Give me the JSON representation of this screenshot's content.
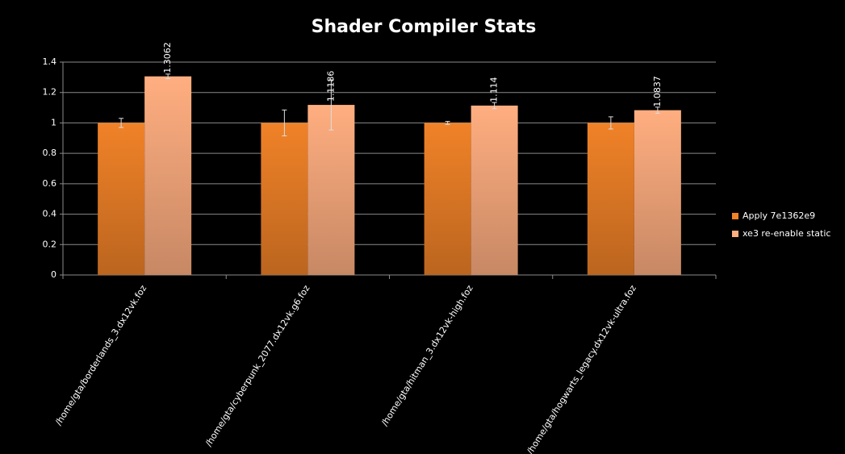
{
  "chart_data": {
    "type": "bar",
    "title": "Shader Compiler Stats",
    "categories": [
      "/home/gta/borderlands_3.dx12vk.foz",
      "/home/gta/cyberpunk_2077.dx12vk.g6.foz",
      "/home/gta/hitman_3.dx12vk-high.foz",
      "/home/gta/hogwarts_legacy.dx12vk-ultra.foz"
    ],
    "series": [
      {
        "name": "Apply 7e1362e9",
        "color": "#f08228",
        "values": [
          1,
          1,
          1,
          1
        ],
        "errors": [
          0.03,
          0.085,
          0.01,
          0.04
        ],
        "data_labels": false
      },
      {
        "name": "xe3 re-enable static",
        "color": "#ffae80",
        "values": [
          1.3062,
          1.1186,
          1.114,
          1.0837
        ],
        "errors": [
          0.015,
          0.165,
          0.02,
          0.02
        ],
        "data_labels": true
      }
    ],
    "ylim": [
      0,
      1.4
    ],
    "yticks": [
      0,
      0.2,
      0.4,
      0.6,
      0.8,
      1,
      1.2,
      1.4
    ],
    "grid": true,
    "legend": "right"
  }
}
